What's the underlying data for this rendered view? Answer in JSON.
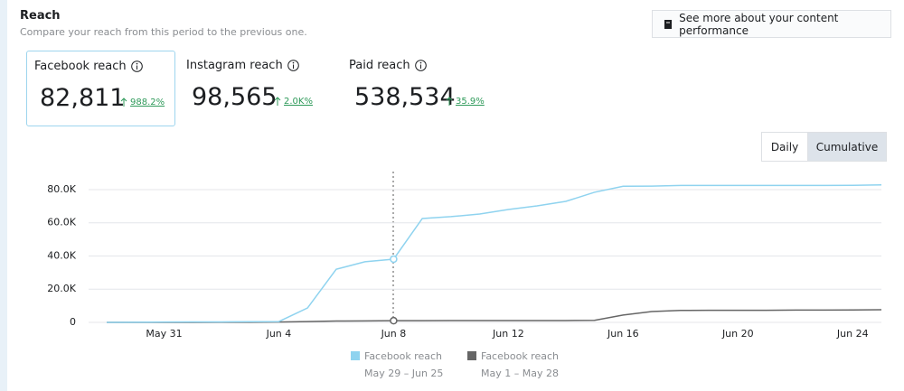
{
  "header": {
    "title": "Reach",
    "subtitle": "Compare your reach from this period to the previous one.",
    "button": "See more about your content performance"
  },
  "metrics": [
    {
      "label": "Facebook reach",
      "value": "82,811",
      "change": "988.2%"
    },
    {
      "label": "Instagram reach",
      "value": "98,565",
      "change": "2.0K%"
    },
    {
      "label": "Paid reach",
      "value": "538,534",
      "change": "35.9%"
    }
  ],
  "toggle": [
    "Daily",
    "Cumulative"
  ],
  "chart_data": {
    "type": "line",
    "categories": [
      null,
      null,
      "May 31",
      null,
      null,
      null,
      "Jun 4",
      null,
      null,
      null,
      "Jun 8",
      null,
      null,
      null,
      "Jun 12",
      null,
      null,
      null,
      "Jun 16",
      null,
      null,
      null,
      "Jun 20",
      null,
      null,
      null,
      "Jun 24",
      null
    ],
    "series": [
      {
        "name": "Facebook reach",
        "period": "May 29 – Jun 25",
        "color": "#8fd3ef",
        "values": [
          0,
          100,
          200,
          300,
          300,
          400,
          500,
          8700,
          32000,
          36500,
          38100,
          62600,
          63700,
          65300,
          68000,
          70200,
          72900,
          78400,
          82000,
          82100,
          82500,
          82500,
          82500,
          82500,
          82500,
          82500,
          82600,
          82811
        ]
      },
      {
        "name": "Facebook reach",
        "period": "May 1 – May 28",
        "color": "#666666",
        "values": [
          0,
          0,
          0,
          0,
          100,
          100,
          200,
          500,
          800,
          900,
          1000,
          1000,
          1100,
          1100,
          1100,
          1100,
          1100,
          1200,
          4400,
          6500,
          7200,
          7300,
          7300,
          7300,
          7400,
          7400,
          7500,
          7600
        ]
      }
    ],
    "ylim": [
      0,
      90000
    ],
    "yticks": [
      0,
      {
        "value": 20000,
        "label": "20.0K"
      },
      {
        "value": 40000,
        "label": "40.0K"
      },
      {
        "value": 60000,
        "label": "60.0K"
      },
      {
        "value": 80000,
        "label": "80.0K"
      }
    ],
    "grid": true
  }
}
